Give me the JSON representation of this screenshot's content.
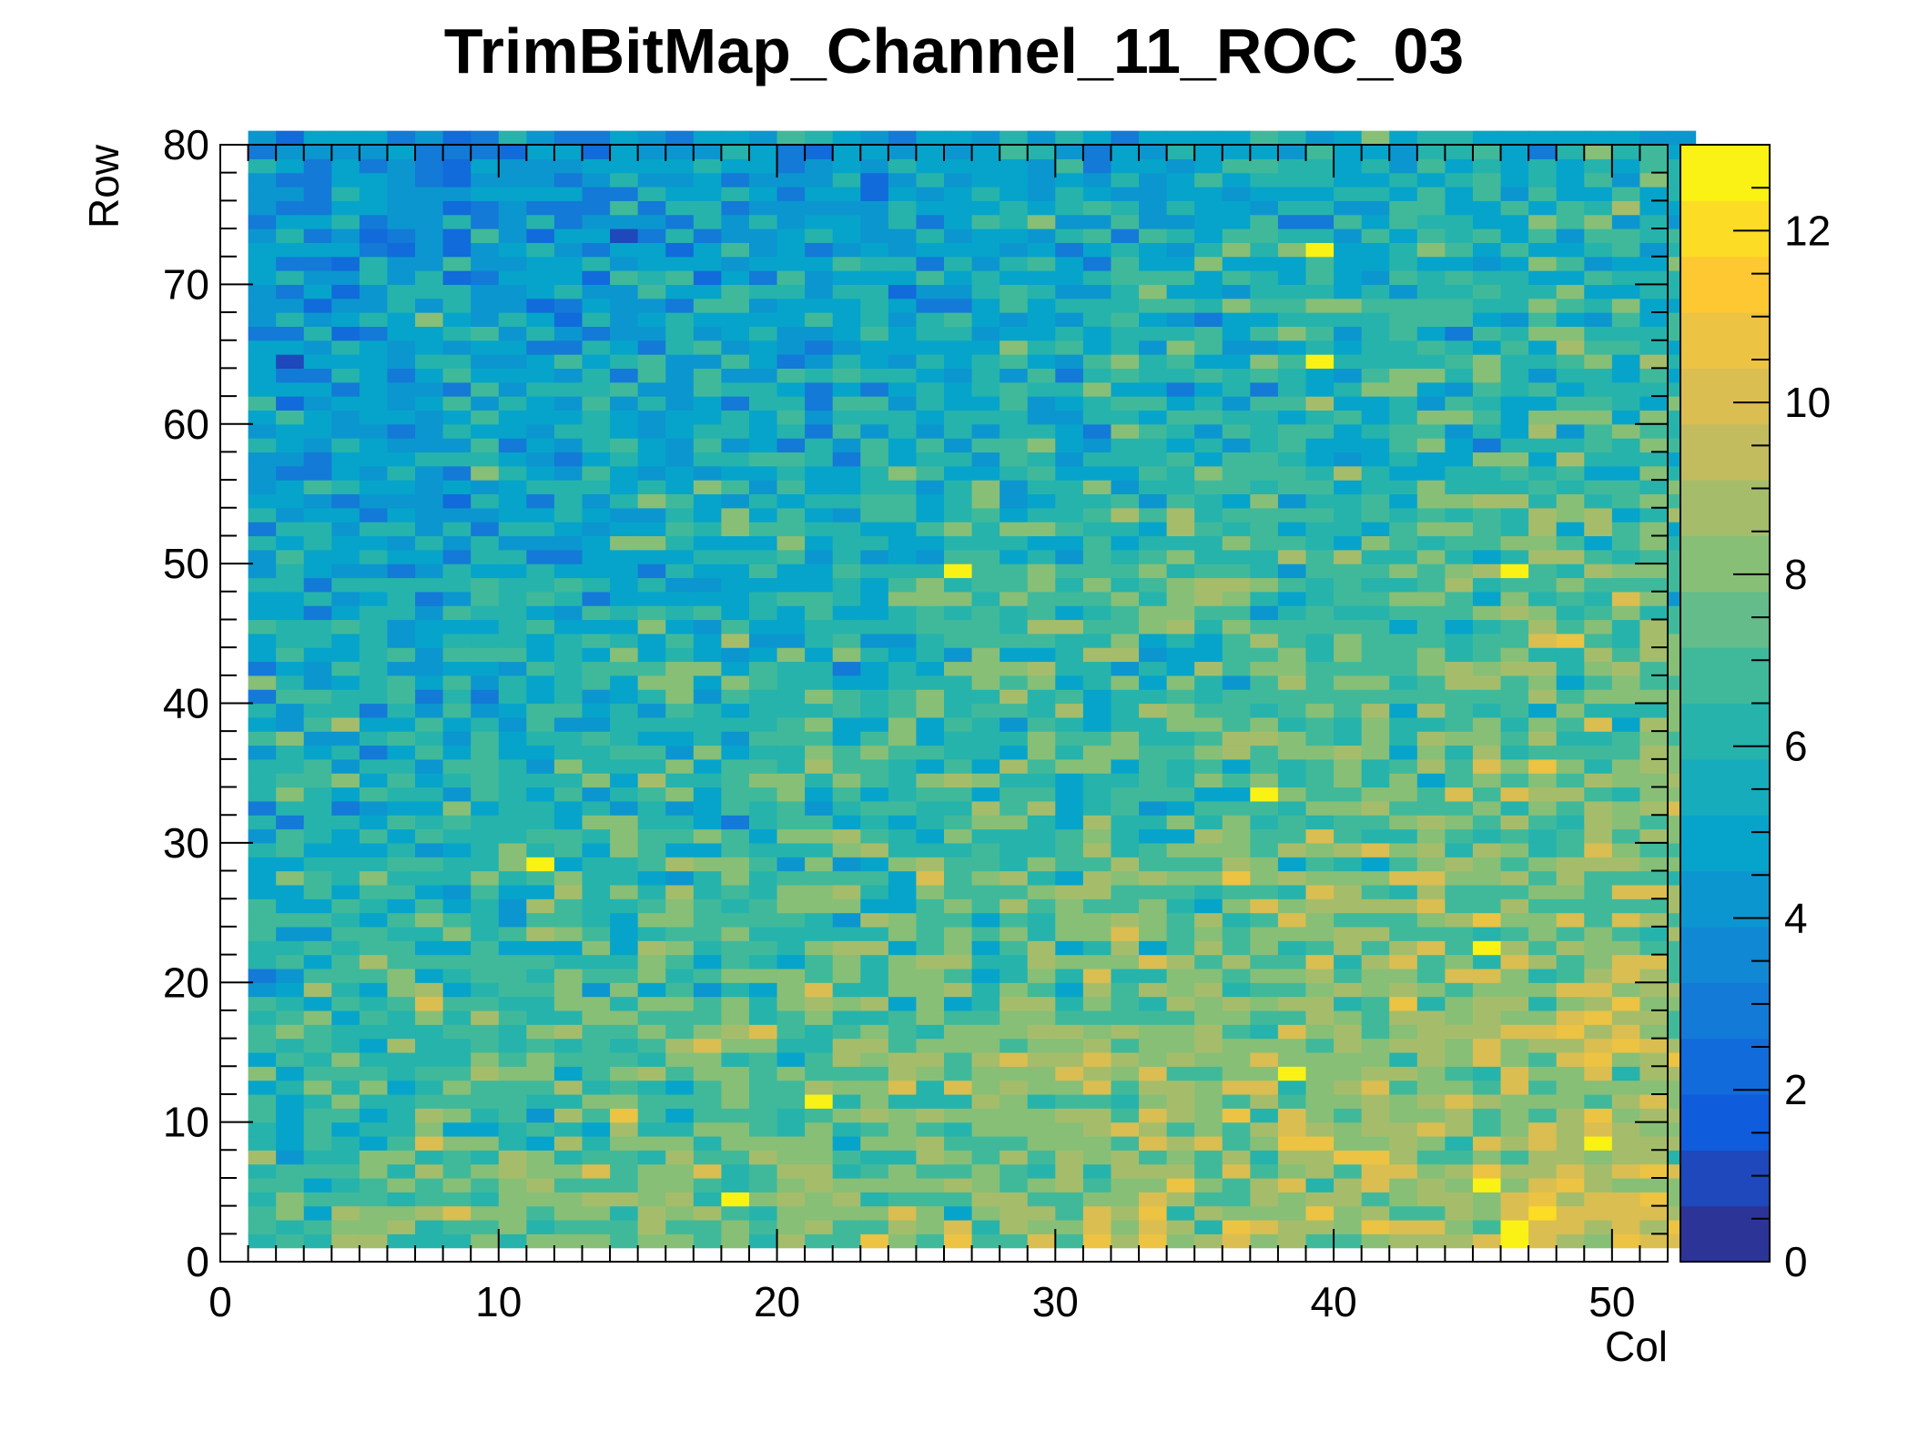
{
  "chart_data": {
    "type": "heatmap",
    "title": "TrimBitMap_Channel_11_ROC_03",
    "xlabel": "Col",
    "ylabel": "Row",
    "xlim": [
      0,
      52
    ],
    "ylim": [
      0,
      80
    ],
    "zlim": [
      0,
      13
    ],
    "x_ticks": [
      0,
      10,
      20,
      30,
      40,
      50
    ],
    "y_ticks": [
      0,
      10,
      20,
      30,
      40,
      50,
      60,
      70,
      80
    ],
    "z_ticks": [
      0,
      2,
      4,
      6,
      8,
      10,
      12
    ],
    "bins": {
      "cols": [
        1,
        52
      ],
      "rows": [
        1,
        80
      ],
      "note_of_content": "value grows with col and decreases with row; typical range 3-11"
    },
    "gradient": {
      "base": 7.1,
      "col_slope": 0.045,
      "row_slope": -0.045,
      "noise": 1.15
    },
    "hot_pixels": [
      {
        "col": 39,
        "row": 72,
        "value": 13
      },
      {
        "col": 39,
        "row": 64,
        "value": 13
      },
      {
        "col": 26,
        "row": 49,
        "value": 13
      },
      {
        "col": 46,
        "row": 49,
        "value": 13
      },
      {
        "col": 37,
        "row": 33,
        "value": 13
      },
      {
        "col": 11,
        "row": 28,
        "value": 13
      },
      {
        "col": 45,
        "row": 22,
        "value": 13
      },
      {
        "col": 38,
        "row": 13,
        "value": 13
      },
      {
        "col": 21,
        "row": 11,
        "value": 13
      },
      {
        "col": 49,
        "row": 8,
        "value": 13
      },
      {
        "col": 45,
        "row": 5,
        "value": 13
      },
      {
        "col": 18,
        "row": 4,
        "value": 13
      },
      {
        "col": 46,
        "row": 2,
        "value": 13
      },
      {
        "col": 46,
        "row": 1,
        "value": 13
      }
    ],
    "palette": [
      "#352a87",
      "#0f5cdd",
      "#1481d6",
      "#06a4ca",
      "#2eb7a4",
      "#87bf77",
      "#d1bb59",
      "#fec832",
      "#f9fb0e"
    ]
  }
}
